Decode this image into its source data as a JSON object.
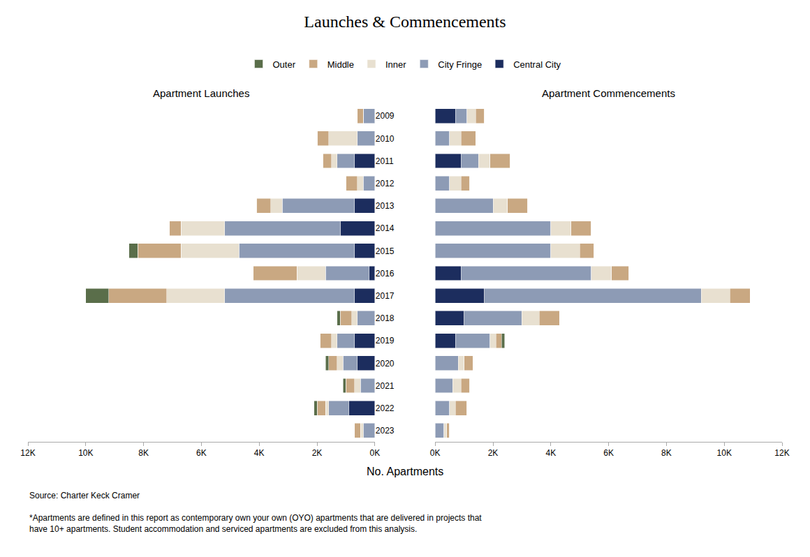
{
  "title": "Launches & Commencements",
  "xlabel": "No. Apartments",
  "source": "Source: Charter Keck Cramer",
  "footnote": "*Apartments are defined in this report as contemporary own your own (OYO) apartments that are delivered in projects that\nhave 10+ apartments. Student accommodation and serviced apartments are excluded from this analysis.",
  "chart_data": [
    {
      "type": "bar",
      "title": "Apartment Launches",
      "orientation": "horizontal",
      "stacked": true,
      "categories": [
        "2023",
        "2022",
        "2021",
        "2020",
        "2019",
        "2018",
        "2017",
        "2016",
        "2015",
        "2014",
        "2013",
        "2012",
        "2011",
        "2010",
        "2009"
      ],
      "series": [
        {
          "name": "Central City",
          "color": "#1c2d5e",
          "values": [
            0,
            900,
            0,
            600,
            700,
            0,
            700,
            200,
            700,
            1200,
            700,
            0,
            700,
            0,
            0
          ]
        },
        {
          "name": "City Fringe",
          "color": "#8d9bb5",
          "values": [
            400,
            700,
            500,
            500,
            600,
            600,
            4500,
            1500,
            4000,
            4000,
            2500,
            400,
            600,
            600,
            400
          ]
        },
        {
          "name": "Inner",
          "color": "#e8e0d0",
          "values": [
            100,
            100,
            200,
            200,
            200,
            200,
            2000,
            1000,
            2000,
            1500,
            400,
            200,
            200,
            1000,
            0
          ]
        },
        {
          "name": "Middle",
          "color": "#c9a882",
          "values": [
            200,
            300,
            300,
            300,
            400,
            400,
            2000,
            1500,
            1500,
            400,
            500,
            400,
            300,
            400,
            200
          ]
        },
        {
          "name": "Outer",
          "color": "#5a6e4a",
          "values": [
            0,
            100,
            100,
            100,
            0,
            100,
            800,
            0,
            300,
            0,
            0,
            0,
            0,
            0,
            0
          ]
        }
      ],
      "xlim": [
        0,
        12000
      ],
      "xticks": [
        {
          "value": 0,
          "label": "0K"
        },
        {
          "value": 2000,
          "label": "2K"
        },
        {
          "value": 4000,
          "label": "4K"
        },
        {
          "value": 6000,
          "label": "6K"
        },
        {
          "value": 8000,
          "label": "8K"
        },
        {
          "value": 10000,
          "label": "10K"
        },
        {
          "value": 12000,
          "label": "12K"
        }
      ],
      "grid": false,
      "legend": "top"
    },
    {
      "type": "bar",
      "title": "Apartment Commencements",
      "orientation": "horizontal",
      "stacked": true,
      "categories": [
        "2023",
        "2022",
        "2021",
        "2020",
        "2019",
        "2018",
        "2017",
        "2016",
        "2015",
        "2014",
        "2013",
        "2012",
        "2011",
        "2010",
        "2009"
      ],
      "series": [
        {
          "name": "Central City",
          "color": "#1c2d5e",
          "values": [
            0,
            0,
            0,
            0,
            700,
            1000,
            1700,
            900,
            0,
            0,
            0,
            0,
            900,
            0,
            700
          ]
        },
        {
          "name": "City Fringe",
          "color": "#8d9bb5",
          "values": [
            300,
            500,
            600,
            800,
            1200,
            2000,
            7500,
            4500,
            4000,
            4000,
            2000,
            500,
            600,
            500,
            400
          ]
        },
        {
          "name": "Inner",
          "color": "#e8e0d0",
          "values": [
            100,
            200,
            300,
            200,
            200,
            600,
            1000,
            700,
            1000,
            700,
            500,
            400,
            400,
            400,
            300
          ]
        },
        {
          "name": "Middle",
          "color": "#c9a882",
          "values": [
            100,
            400,
            300,
            300,
            200,
            700,
            700,
            600,
            500,
            700,
            700,
            300,
            700,
            500,
            300
          ]
        },
        {
          "name": "Outer",
          "color": "#5a6e4a",
          "values": [
            0,
            0,
            0,
            0,
            100,
            0,
            0,
            0,
            0,
            0,
            0,
            0,
            0,
            0,
            0
          ]
        }
      ],
      "xlim": [
        0,
        12000
      ],
      "xticks": [
        {
          "value": 0,
          "label": "0K"
        },
        {
          "value": 2000,
          "label": "2K"
        },
        {
          "value": 4000,
          "label": "4K"
        },
        {
          "value": 6000,
          "label": "6K"
        },
        {
          "value": 8000,
          "label": "8K"
        },
        {
          "value": 10000,
          "label": "10K"
        },
        {
          "value": 12000,
          "label": "12K"
        }
      ],
      "grid": false
    }
  ]
}
